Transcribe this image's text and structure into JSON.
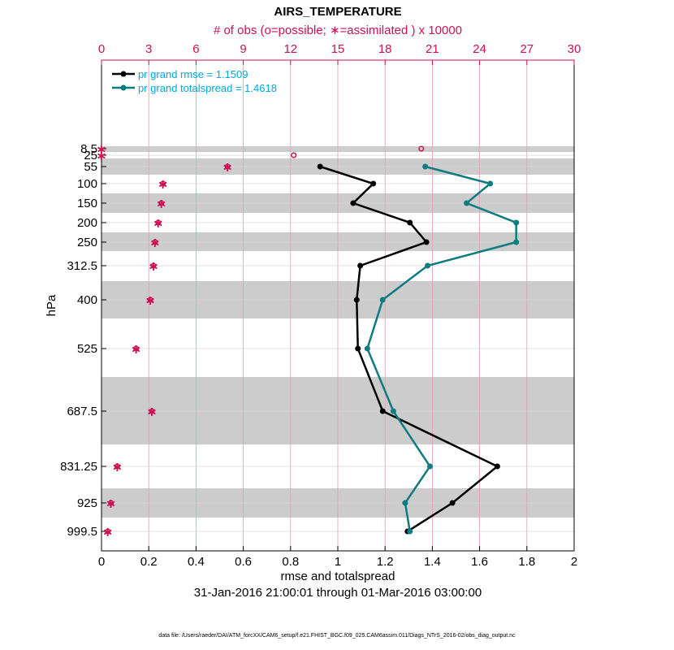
{
  "chart_data": {
    "type": "line",
    "title": "AIRS_TEMPERATURE",
    "top_axis_label": "# of obs (o=possible; ∗=assimilated ) x 10000",
    "xlabel": "rmse and totalspread",
    "ylabel": "hPa",
    "date_range": "31-Jan-2016 21:00:01 through 01-Mar-2016 03:00:00",
    "footer": "data file: /Users/raeder/DAI/ATM_forcXX/CAM6_setup/f.e21.FHIST_BGC.f09_025.CAM6assim.011/Diags_NTrS_2016-02/obs_diag_output.nc",
    "xlim": [
      0,
      2
    ],
    "x_ticks": [
      "0",
      "0.2",
      "0.4",
      "0.6",
      "0.8",
      "1",
      "1.2",
      "1.4",
      "1.6",
      "1.8",
      "2"
    ],
    "top_xlim": [
      0,
      30
    ],
    "top_ticks": [
      "0",
      "3",
      "6",
      "9",
      "12",
      "15",
      "18",
      "21",
      "24",
      "27",
      "30"
    ],
    "levels": [
      8.5,
      25,
      55,
      100,
      150,
      200,
      250,
      312.5,
      400,
      525,
      687.5,
      831.25,
      925,
      999.5
    ],
    "level_labels": [
      "8.5",
      "25",
      "55",
      "100",
      "150",
      "200",
      "250",
      "312.5",
      "400",
      "525",
      "687.5",
      "831.25",
      "925",
      "999.5"
    ],
    "series": [
      {
        "name": "pr grand rmse = 1.1509",
        "color": "#000000",
        "levels": [
          55,
          100,
          150,
          200,
          250,
          312.5,
          400,
          525,
          687.5,
          831.25,
          925,
          999.5
        ],
        "values": [
          0.925,
          1.15,
          1.065,
          1.305,
          1.375,
          1.095,
          1.08,
          1.085,
          1.19,
          1.675,
          1.485,
          1.295
        ]
      },
      {
        "name": "pr grand totalspread = 1.4618",
        "color": "#0e7c80",
        "levels": [
          55,
          100,
          150,
          200,
          250,
          312.5,
          400,
          525,
          687.5,
          831.25,
          925,
          999.5
        ],
        "values": [
          1.37,
          1.645,
          1.545,
          1.755,
          1.755,
          1.38,
          1.19,
          1.125,
          1.235,
          1.39,
          1.285,
          1.305
        ]
      }
    ],
    "obs_possible": {
      "levels": [
        8.5,
        25,
        55,
        100,
        150,
        200,
        250,
        312.5,
        400,
        525,
        687.5,
        831.25,
        925,
        999.5
      ],
      "values": [
        20.3,
        12.2,
        8.0,
        3.9,
        3.8,
        3.6,
        3.4,
        3.3,
        3.1,
        2.2,
        3.2,
        1.0,
        0.6,
        0.4
      ]
    },
    "obs_assimilated": {
      "levels": [
        8.5,
        25,
        55,
        100,
        150,
        200,
        250,
        312.5,
        400,
        525,
        687.5,
        831.25,
        925,
        999.5
      ],
      "values": [
        0.0,
        0.0,
        8.0,
        3.9,
        3.8,
        3.6,
        3.4,
        3.3,
        3.1,
        2.2,
        3.2,
        1.0,
        0.6,
        0.4
      ]
    },
    "colors": {
      "obs": "#cc1155",
      "legend_text": "#00a8e0",
      "band": "#cccccc",
      "grid_top": "#e79ab8"
    }
  }
}
